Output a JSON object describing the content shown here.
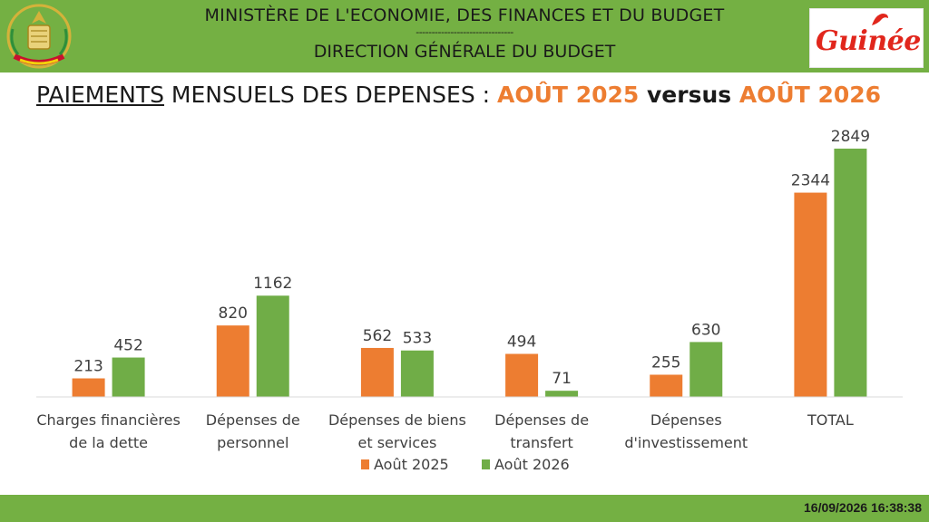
{
  "header": {
    "ministry": "MINISTÈRE DE L'ECONOMIE, DES FINANCES ET DU BUDGET",
    "separator": "-------------------------------",
    "direction": "DIRECTION GÉNÉRALE DU BUDGET",
    "brand": "Guinée"
  },
  "title": {
    "part1": "PAIEMENTS",
    "part2": " MENSUELS DES DEPENSES : ",
    "period1": "AOÛT 2025",
    "versus": " versus ",
    "period2": "AOÛT 2026"
  },
  "footer": {
    "timestamp": "16/09/2026 16:38:38"
  },
  "colors": {
    "series1": "#ed7d31",
    "series2": "#70ad47",
    "band": "#74b043"
  },
  "chart_data": {
    "type": "bar",
    "categories": [
      [
        "Charges financières",
        "de la dette"
      ],
      [
        "Dépenses de",
        "personnel"
      ],
      [
        "Dépenses de biens",
        "et services"
      ],
      [
        "Dépenses de",
        "transfert"
      ],
      [
        "Dépenses",
        "d'investissement"
      ],
      [
        "TOTAL"
      ]
    ],
    "series": [
      {
        "name": "Août 2025",
        "values": [
          213,
          820,
          562,
          494,
          255,
          2344
        ]
      },
      {
        "name": "Août 2026",
        "values": [
          452,
          1162,
          533,
          71,
          630,
          2849
        ]
      }
    ],
    "legend": "bottom",
    "grid": false,
    "ylim": [
      0,
      2849
    ]
  }
}
